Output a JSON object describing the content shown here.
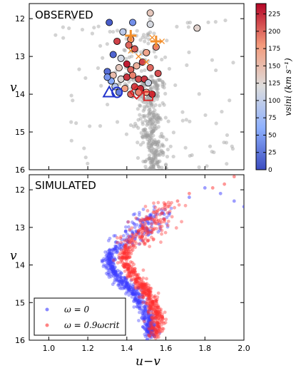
{
  "chart_data": [
    {
      "type": "scatter",
      "panel_label": "OBSERVED",
      "xlim": [
        0.9,
        2.0
      ],
      "ylim": [
        16,
        11.6
      ],
      "y_inverted": true,
      "ylabel": "v",
      "yticks": [
        12,
        13,
        14,
        15,
        16
      ],
      "colorbar": {
        "label": "vsini (km s⁻¹)",
        "range": [
          0,
          240
        ],
        "ticks": [
          0,
          25,
          50,
          75,
          100,
          125,
          150,
          175,
          200,
          225
        ],
        "colormap": "coolwarm"
      },
      "field_stars_color": "#9e9e9e",
      "members": [
        {
          "x": 1.31,
          "y": 12.1,
          "vsini": 10
        },
        {
          "x": 1.38,
          "y": 12.35,
          "vsini": 95
        },
        {
          "x": 1.43,
          "y": 12.1,
          "vsini": 40
        },
        {
          "x": 1.52,
          "y": 11.85,
          "vsini": 140
        },
        {
          "x": 1.52,
          "y": 12.15,
          "vsini": 115
        },
        {
          "x": 1.76,
          "y": 12.25,
          "vsini": 130
        },
        {
          "x": 1.35,
          "y": 12.6,
          "vsini": 215
        },
        {
          "x": 1.42,
          "y": 12.55,
          "vsini": 180
        },
        {
          "x": 1.41,
          "y": 12.7,
          "vsini": 200
        },
        {
          "x": 1.44,
          "y": 12.8,
          "vsini": 205
        },
        {
          "x": 1.5,
          "y": 12.9,
          "vsini": 170
        },
        {
          "x": 1.55,
          "y": 12.75,
          "vsini": 190
        },
        {
          "x": 1.33,
          "y": 12.95,
          "vsini": 15
        },
        {
          "x": 1.37,
          "y": 13.05,
          "vsini": 110
        },
        {
          "x": 1.4,
          "y": 13.2,
          "vsini": 230
        },
        {
          "x": 1.36,
          "y": 13.3,
          "vsini": 140
        },
        {
          "x": 1.42,
          "y": 13.35,
          "vsini": 200
        },
        {
          "x": 1.45,
          "y": 13.25,
          "vsini": 160
        },
        {
          "x": 1.48,
          "y": 13.15,
          "vsini": 215
        },
        {
          "x": 1.52,
          "y": 13.3,
          "vsini": 200
        },
        {
          "x": 1.56,
          "y": 13.45,
          "vsini": 210
        },
        {
          "x": 1.3,
          "y": 13.4,
          "vsini": 20
        },
        {
          "x": 1.33,
          "y": 13.5,
          "vsini": 150
        },
        {
          "x": 1.37,
          "y": 13.6,
          "vsini": 125
        },
        {
          "x": 1.4,
          "y": 13.55,
          "vsini": 220
        },
        {
          "x": 1.43,
          "y": 13.5,
          "vsini": 190
        },
        {
          "x": 1.46,
          "y": 13.6,
          "vsini": 210
        },
        {
          "x": 1.49,
          "y": 13.6,
          "vsini": 220
        },
        {
          "x": 1.32,
          "y": 13.65,
          "vsini": 55
        },
        {
          "x": 1.34,
          "y": 13.8,
          "vsini": 90
        },
        {
          "x": 1.39,
          "y": 13.85,
          "vsini": 175
        },
        {
          "x": 1.44,
          "y": 13.8,
          "vsini": 215
        },
        {
          "x": 1.47,
          "y": 13.85,
          "vsini": 225
        },
        {
          "x": 1.51,
          "y": 13.7,
          "vsini": 105
        },
        {
          "x": 1.36,
          "y": 13.95,
          "vsini": 30
        },
        {
          "x": 1.42,
          "y": 14.0,
          "vsini": 200
        },
        {
          "x": 1.46,
          "y": 13.95,
          "vsini": 190
        },
        {
          "x": 1.5,
          "y": 13.95,
          "vsini": 175
        },
        {
          "x": 1.53,
          "y": 14.0,
          "vsini": 225
        },
        {
          "x": 1.3,
          "y": 13.55,
          "vsini": 45
        }
      ],
      "crosses": [
        {
          "x": 1.42,
          "y": 12.85,
          "vsini": 235
        },
        {
          "x": 1.46,
          "y": 13.0,
          "vsini": 235
        },
        {
          "x": 1.5,
          "y": 13.15,
          "vsini": 235
        },
        {
          "x": 1.53,
          "y": 12.5,
          "vsini": 235
        },
        {
          "x": 1.58,
          "y": 12.6,
          "vsini": 235
        }
      ],
      "special_markers": [
        {
          "shape": "plus",
          "x": 1.42,
          "y": 12.45,
          "vsini": 230,
          "size": "large"
        },
        {
          "shape": "plus",
          "x": 1.55,
          "y": 12.6,
          "vsini": 230,
          "size": "large"
        },
        {
          "shape": "triangle",
          "x": 1.31,
          "y": 13.95,
          "vsini": 0,
          "size": "large"
        },
        {
          "shape": "circle",
          "x": 1.35,
          "y": 13.95,
          "vsini": 0,
          "size": "large"
        },
        {
          "shape": "diamond",
          "x": 1.45,
          "y": 13.95,
          "vsini": 240,
          "size": "large"
        },
        {
          "shape": "square",
          "x": 1.51,
          "y": 14.05,
          "vsini": 240,
          "size": "large"
        }
      ]
    },
    {
      "type": "scatter",
      "panel_label": "SIMULATED",
      "xlim": [
        0.9,
        2.0
      ],
      "ylim": [
        16,
        11.6
      ],
      "y_inverted": true,
      "xlabel": "u−v",
      "ylabel": "v",
      "xticks": [
        1.0,
        1.2,
        1.4,
        1.6,
        1.8,
        2.0
      ],
      "yticks": [
        12,
        13,
        14,
        15,
        16
      ],
      "legend": {
        "placement": "lower-left",
        "entries": [
          {
            "label": "ω = 0",
            "color": "#3b3bff"
          },
          {
            "label": "ω = 0.9ωcrit",
            "color": "#ff3030"
          }
        ]
      },
      "series": [
        {
          "name": "ω = 0",
          "color": "#3b3bff",
          "track": [
            [
              1.57,
              12.5
            ],
            [
              1.54,
              12.7
            ],
            [
              1.5,
              12.9
            ],
            [
              1.46,
              13.1
            ],
            [
              1.41,
              13.3
            ],
            [
              1.36,
              13.5
            ],
            [
              1.32,
              13.7
            ],
            [
              1.31,
              13.9
            ],
            [
              1.32,
              14.1
            ],
            [
              1.35,
              14.3
            ],
            [
              1.39,
              14.5
            ],
            [
              1.43,
              14.7
            ],
            [
              1.46,
              14.9
            ],
            [
              1.48,
              15.1
            ],
            [
              1.5,
              15.3
            ],
            [
              1.51,
              15.5
            ],
            [
              1.52,
              15.7
            ],
            [
              1.52,
              15.9
            ]
          ]
        },
        {
          "name": "ω = 0.9ωcrit",
          "color": "#ff3030",
          "track": [
            [
              1.6,
              12.3
            ],
            [
              1.58,
              12.5
            ],
            [
              1.56,
              12.7
            ],
            [
              1.54,
              12.9
            ],
            [
              1.5,
              13.1
            ],
            [
              1.46,
              13.3
            ],
            [
              1.42,
              13.5
            ],
            [
              1.39,
              13.7
            ],
            [
              1.39,
              13.9
            ],
            [
              1.41,
              14.1
            ],
            [
              1.44,
              14.3
            ],
            [
              1.47,
              14.5
            ],
            [
              1.5,
              14.7
            ],
            [
              1.52,
              14.9
            ],
            [
              1.54,
              15.1
            ],
            [
              1.55,
              15.3
            ],
            [
              1.55,
              15.5
            ],
            [
              1.55,
              15.7
            ],
            [
              1.55,
              15.9
            ]
          ]
        }
      ],
      "extra_points": [
        {
          "x": 1.8,
          "y": 11.95,
          "series": 0
        },
        {
          "x": 1.88,
          "y": 12.1,
          "series": 0
        },
        {
          "x": 1.95,
          "y": 12.3,
          "series": 0
        },
        {
          "x": 2.0,
          "y": 12.45,
          "series": 0
        },
        {
          "x": 1.72,
          "y": 12.2,
          "series": 0
        },
        {
          "x": 1.9,
          "y": 11.85,
          "series": 1
        },
        {
          "x": 1.84,
          "y": 11.95,
          "series": 1
        },
        {
          "x": 1.95,
          "y": 11.65,
          "series": 1
        },
        {
          "x": 1.72,
          "y": 12.1,
          "series": 1
        },
        {
          "x": 1.66,
          "y": 12.3,
          "series": 1
        }
      ]
    }
  ]
}
